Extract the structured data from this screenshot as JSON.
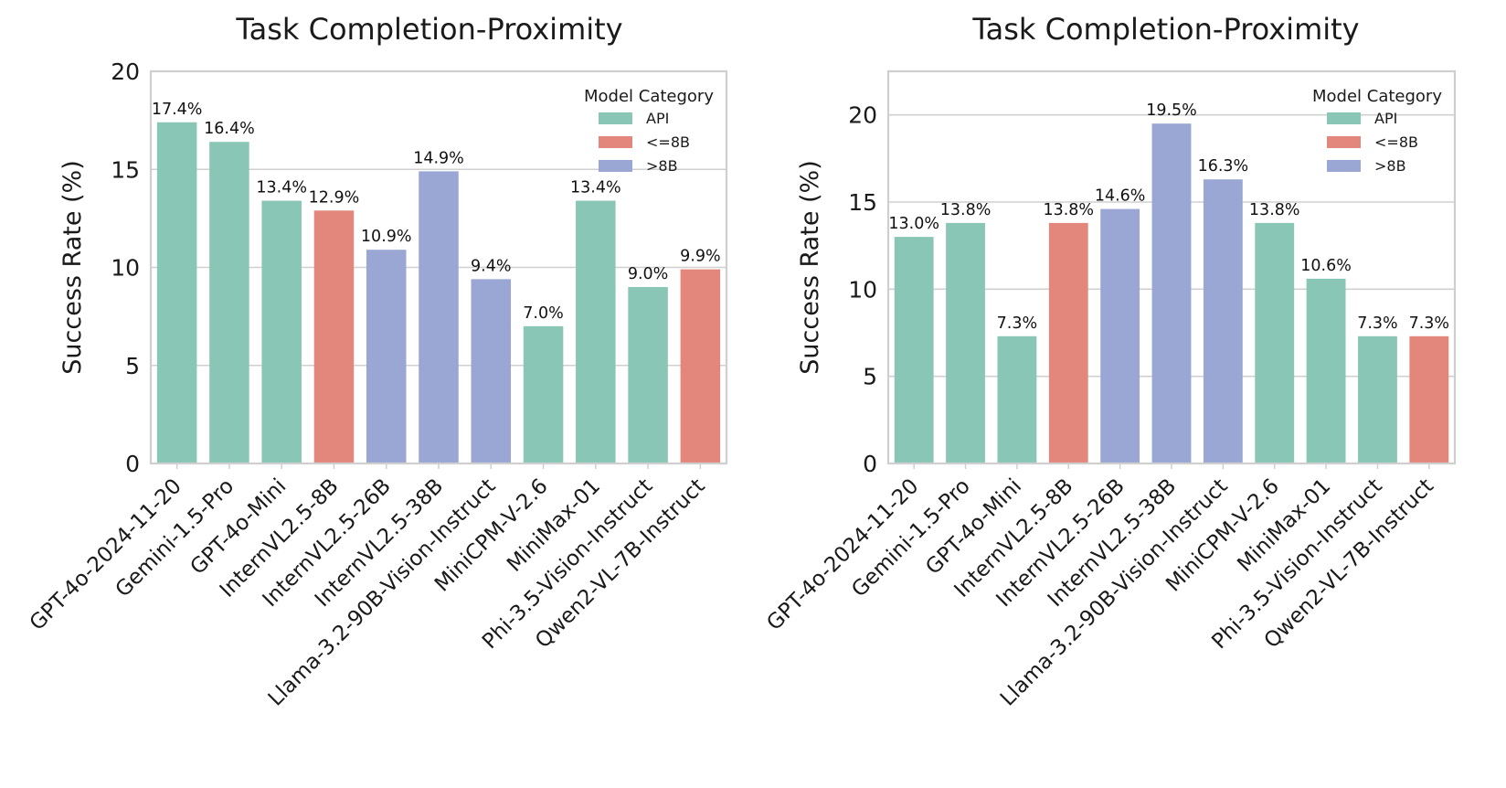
{
  "colors": {
    "API": "#8ac6b5",
    "<=8B": "#e3877d",
    ">8B": "#9aa7d4",
    "grid": "#d0d0d0",
    "axes": "#cfcfcf",
    "text": "#1a1a1a"
  },
  "chart_data": [
    {
      "type": "bar",
      "title": "Task Completion-Proximity",
      "xlabel": "",
      "ylabel": "Success Rate (%)",
      "ylim": [
        0,
        20
      ],
      "yticks": [
        0,
        5,
        10,
        15,
        20
      ],
      "grid": true,
      "legend": {
        "title": "Model Category",
        "placement": "top-right",
        "entries": [
          "API",
          "<=8B",
          ">8B"
        ]
      },
      "categories": [
        "GPT-4o-2024-11-20",
        "Gemini-1.5-Pro",
        "GPT-4o-Mini",
        "InternVL2.5-8B",
        "InternVL2.5-26B",
        "InternVL2.5-38B",
        "Llama-3.2-90B-Vision-Instruct",
        "MiniCPM-V-2.6",
        "MiniMax-01",
        "Phi-3.5-Vision-Instruct",
        "Qwen2-VL-7B-Instruct"
      ],
      "values": [
        17.4,
        16.4,
        13.4,
        12.9,
        10.9,
        14.9,
        9.4,
        7.0,
        13.4,
        9.0,
        9.9
      ],
      "labels": [
        "17.4%",
        "16.4%",
        "13.4%",
        "12.9%",
        "10.9%",
        "14.9%",
        "9.4%",
        "7.0%",
        "13.4%",
        "9.0%",
        "9.9%"
      ],
      "model_category": [
        "API",
        "API",
        "API",
        "<=8B",
        ">8B",
        ">8B",
        ">8B",
        "API",
        "API",
        "API",
        "<=8B"
      ]
    },
    {
      "type": "bar",
      "title": "Task Completion-Proximity",
      "xlabel": "",
      "ylabel": "Success Rate (%)",
      "ylim": [
        0,
        22.5
      ],
      "yticks": [
        0,
        5,
        10,
        15,
        20
      ],
      "grid": true,
      "legend": {
        "title": "Model Category",
        "placement": "top-right",
        "entries": [
          "API",
          "<=8B",
          ">8B"
        ]
      },
      "categories": [
        "GPT-4o-2024-11-20",
        "Gemini-1.5-Pro",
        "GPT-4o-Mini",
        "InternVL2.5-8B",
        "InternVL2.5-26B",
        "InternVL2.5-38B",
        "Llama-3.2-90B-Vision-Instruct",
        "MiniCPM-V-2.6",
        "MiniMax-01",
        "Phi-3.5-Vision-Instruct",
        "Qwen2-VL-7B-Instruct"
      ],
      "values": [
        13.0,
        13.8,
        7.3,
        13.8,
        14.6,
        19.5,
        16.3,
        13.8,
        10.6,
        7.3,
        7.3
      ],
      "labels": [
        "13.0%",
        "13.8%",
        "7.3%",
        "13.8%",
        "14.6%",
        "19.5%",
        "16.3%",
        "13.8%",
        "10.6%",
        "7.3%",
        "7.3%"
      ],
      "model_category": [
        "API",
        "API",
        "API",
        "<=8B",
        ">8B",
        ">8B",
        ">8B",
        "API",
        "API",
        "API",
        "<=8B"
      ]
    }
  ]
}
